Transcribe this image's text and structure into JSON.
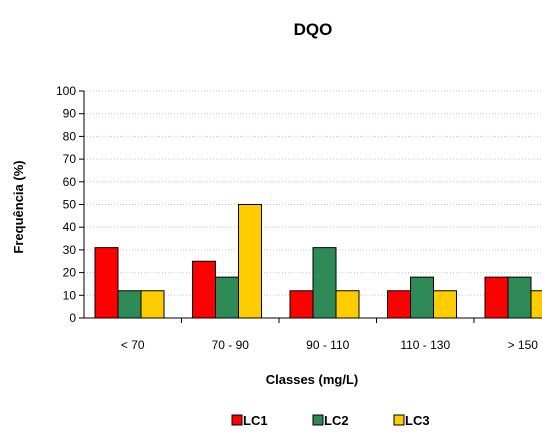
{
  "chart_data": {
    "type": "bar",
    "title": "DQO",
    "xlabel": "Classes (mg/L)",
    "ylabel": "Frequência (%)",
    "categories": [
      "< 70",
      "70 - 90",
      "90 - 110",
      "110 - 130",
      "> 150"
    ],
    "series": [
      {
        "name": "LC1",
        "color": "#ff0000",
        "values": [
          31,
          25,
          12,
          12,
          18
        ]
      },
      {
        "name": "LC2",
        "color": "#2e8b57",
        "values": [
          12,
          18,
          31,
          18,
          18
        ]
      },
      {
        "name": "LC3",
        "color": "#ffcc00",
        "values": [
          12,
          50,
          12,
          12,
          12
        ]
      }
    ],
    "ylim": [
      0,
      100
    ],
    "yticks": [
      0,
      10,
      20,
      30,
      40,
      50,
      60,
      70,
      80,
      90,
      100
    ],
    "grid": true,
    "legend_position": "bottom"
  }
}
